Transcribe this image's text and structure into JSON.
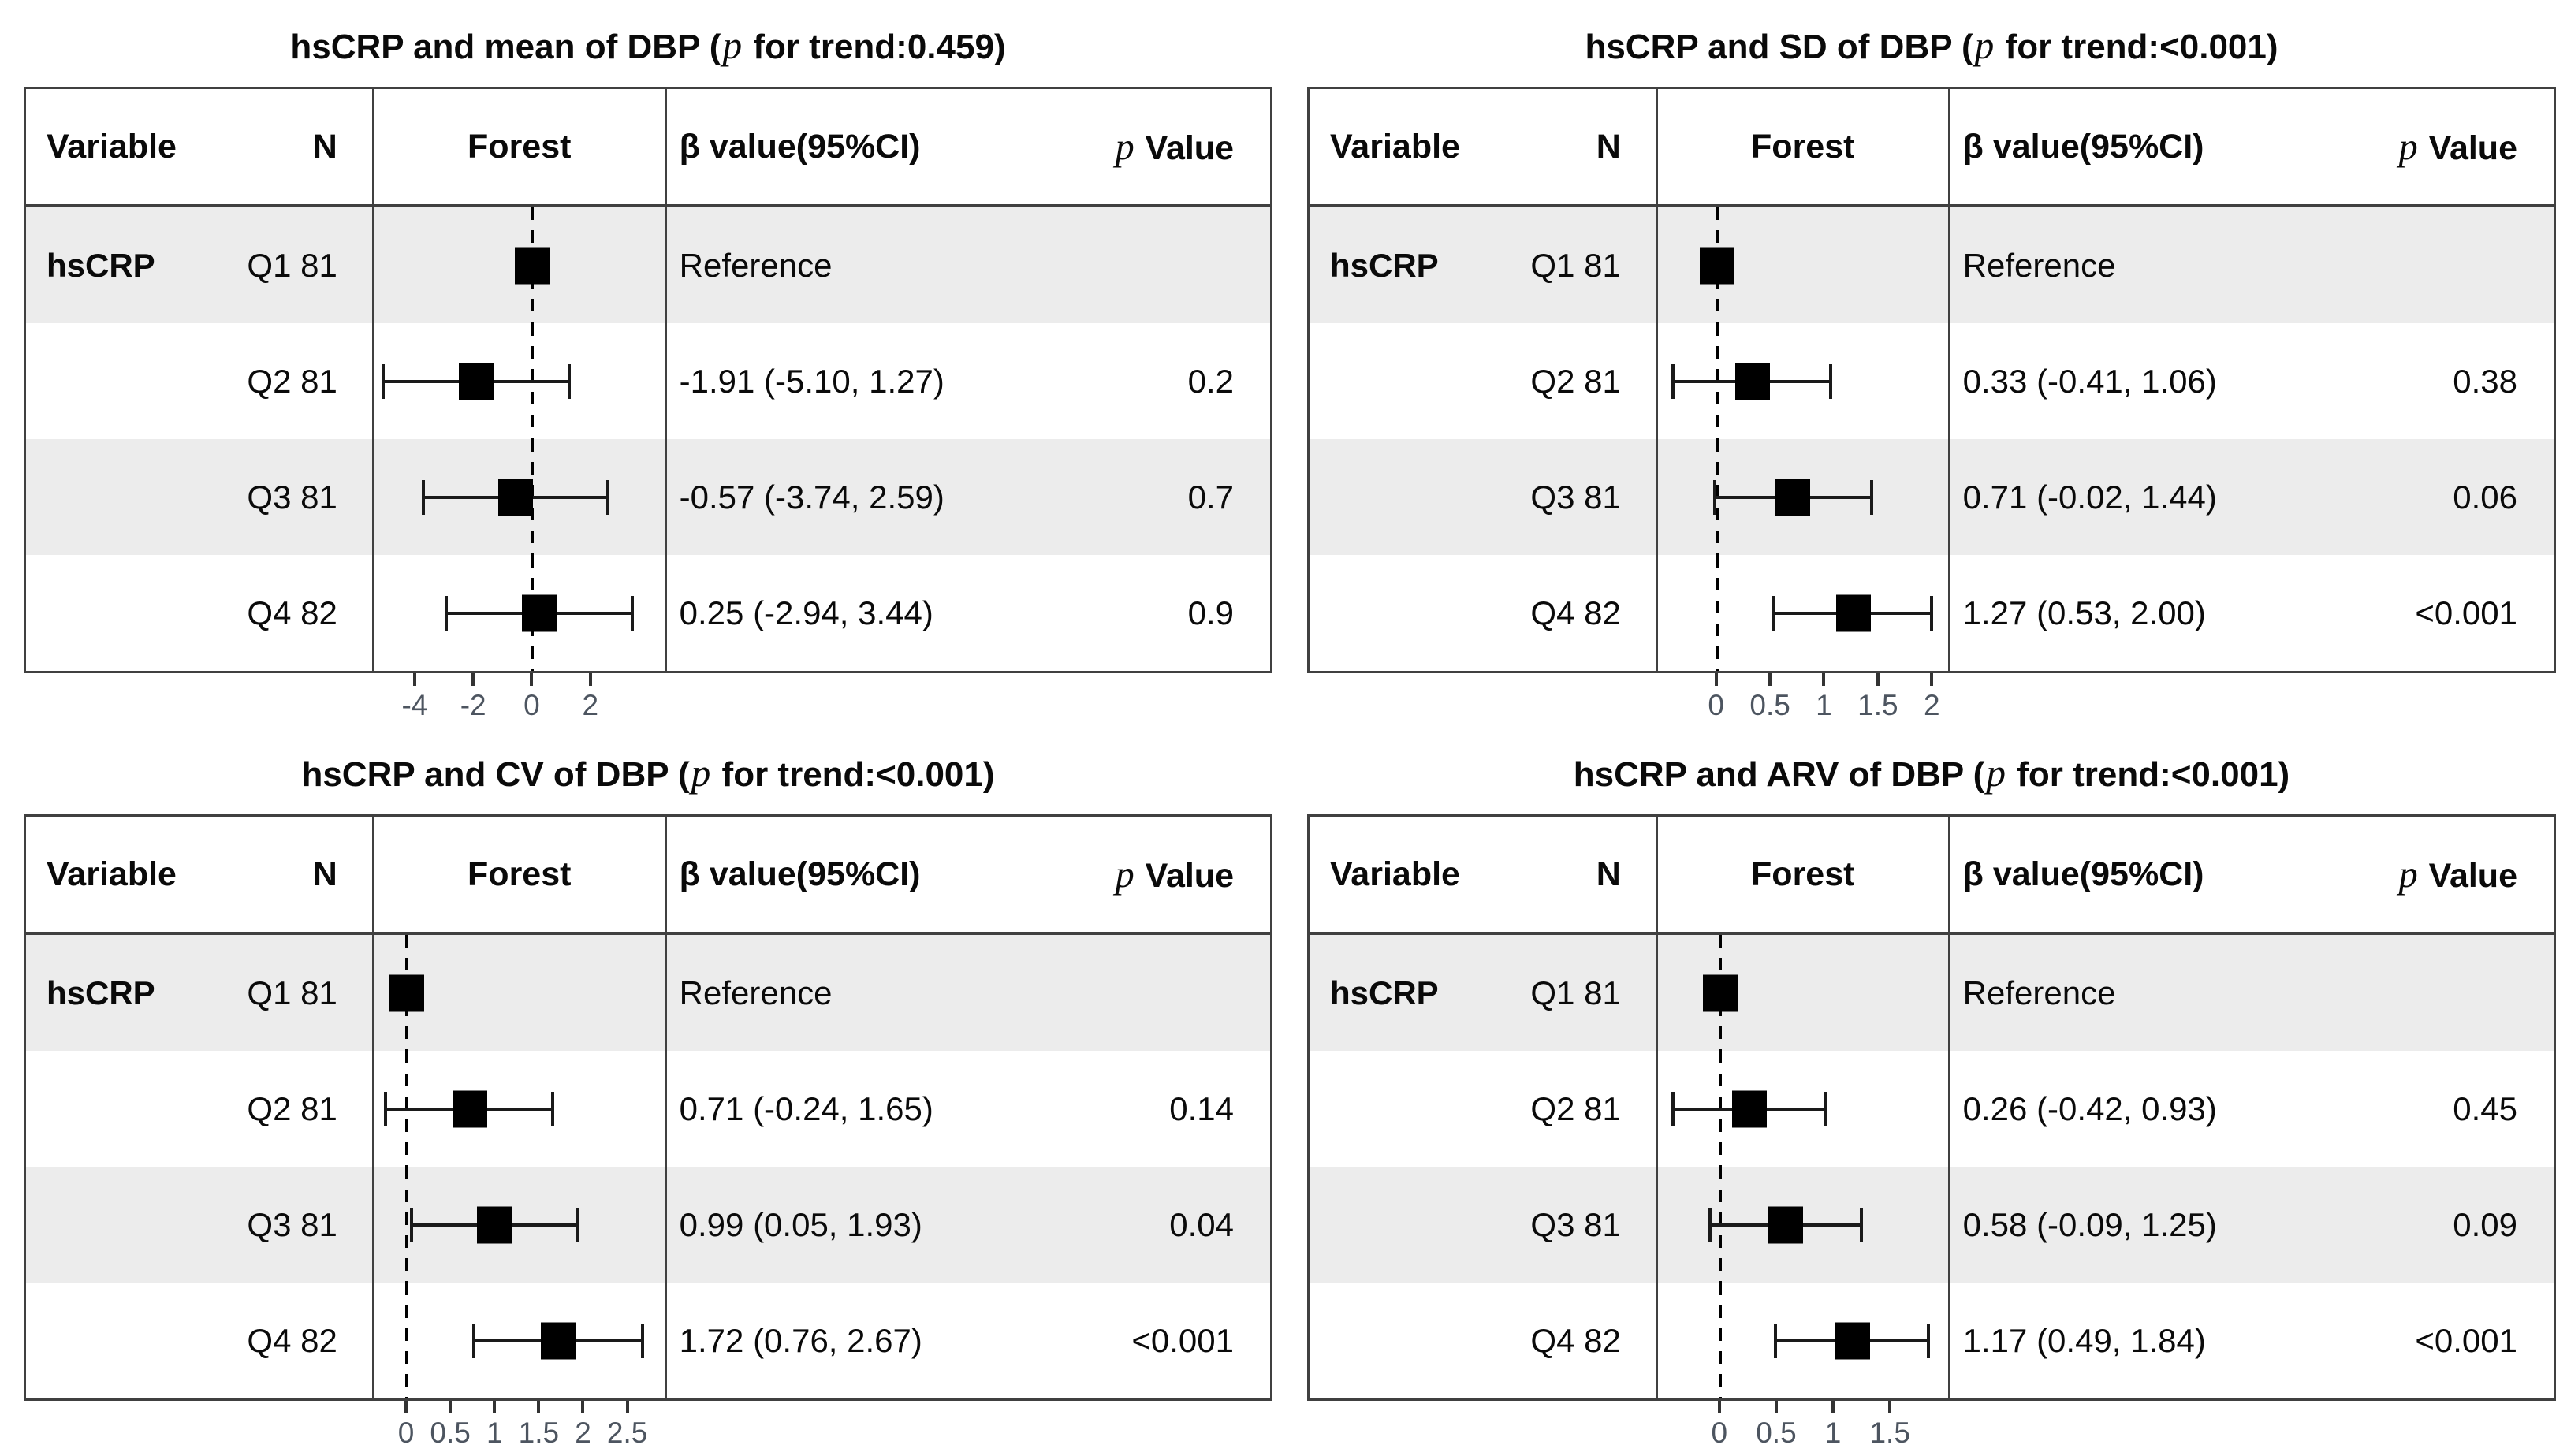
{
  "columns": {
    "variable": "Variable",
    "n": "N",
    "forest": "Forest",
    "beta": "β value(95%CI)",
    "p_italic": "p",
    "p_rest": " Value"
  },
  "colors": {
    "stripe": "#ececec",
    "border": "#404040",
    "marker": "#000000",
    "axis_text": "#4d5560"
  },
  "chart_data": [
    {
      "type": "forest",
      "title_prefix": "hsCRP and mean of DBP (",
      "title_p": "p",
      "title_suffix": " for trend:0.459)",
      "variable": "hsCRP",
      "outcome": "mean of DBP",
      "p_for_trend": "0.459",
      "xlim": [
        -5.41,
        4.53
      ],
      "ticks": [
        -4,
        -2,
        0,
        2
      ],
      "tick_labels": [
        "-4",
        "-2",
        "0",
        "2"
      ],
      "rows": [
        {
          "label": "Q1 81",
          "quartile": "Q1",
          "n": 81,
          "beta_text": "Reference",
          "p_text": "",
          "est": 0,
          "lo": null,
          "hi": null
        },
        {
          "label": "Q2 81",
          "quartile": "Q2",
          "n": 81,
          "beta_text": "-1.91 (-5.10, 1.27)",
          "p_text": "0.2",
          "est": -1.91,
          "lo": -5.1,
          "hi": 1.27
        },
        {
          "label": "Q3 81",
          "quartile": "Q3",
          "n": 81,
          "beta_text": "-0.57 (-3.74, 2.59)",
          "p_text": "0.7",
          "est": -0.57,
          "lo": -3.74,
          "hi": 2.59
        },
        {
          "label": "Q4 82",
          "quartile": "Q4",
          "n": 82,
          "beta_text": "0.25 (-2.94, 3.44)",
          "p_text": "0.9",
          "est": 0.25,
          "lo": -2.94,
          "hi": 3.44
        }
      ]
    },
    {
      "type": "forest",
      "title_prefix": "hsCRP and SD of DBP (",
      "title_p": "p",
      "title_suffix": " for trend:<0.001)",
      "variable": "hsCRP",
      "outcome": "SD of DBP",
      "p_for_trend": "<0.001",
      "xlim": [
        -0.55,
        2.15
      ],
      "ticks": [
        0,
        0.5,
        1,
        1.5,
        2
      ],
      "tick_labels": [
        "0",
        "0.5",
        "1",
        "1.5",
        "2"
      ],
      "rows": [
        {
          "label": "Q1 81",
          "quartile": "Q1",
          "n": 81,
          "beta_text": "Reference",
          "p_text": "",
          "est": 0,
          "lo": null,
          "hi": null
        },
        {
          "label": "Q2 81",
          "quartile": "Q2",
          "n": 81,
          "beta_text": "0.33 (-0.41, 1.06)",
          "p_text": "0.38",
          "est": 0.33,
          "lo": -0.41,
          "hi": 1.06
        },
        {
          "label": "Q3 81",
          "quartile": "Q3",
          "n": 81,
          "beta_text": "0.71 (-0.02, 1.44)",
          "p_text": "0.06",
          "est": 0.71,
          "lo": -0.02,
          "hi": 1.44
        },
        {
          "label": "Q4 82",
          "quartile": "Q4",
          "n": 82,
          "beta_text": "1.27 (0.53, 2.00)",
          "p_text": "<0.001",
          "est": 1.27,
          "lo": 0.53,
          "hi": 2.0
        }
      ]
    },
    {
      "type": "forest",
      "title_prefix": "hsCRP and CV of DBP (",
      "title_p": "p",
      "title_suffix": " for trend:<0.001)",
      "variable": "hsCRP",
      "outcome": "CV of DBP",
      "p_for_trend": "<0.001",
      "xlim": [
        -0.37,
        2.92
      ],
      "ticks": [
        0,
        0.5,
        1,
        1.5,
        2,
        2.5
      ],
      "tick_labels": [
        "0",
        "0.5",
        "1",
        "1.5",
        "2",
        "2.5"
      ],
      "rows": [
        {
          "label": "Q1 81",
          "quartile": "Q1",
          "n": 81,
          "beta_text": "Reference",
          "p_text": "",
          "est": 0,
          "lo": null,
          "hi": null
        },
        {
          "label": "Q2 81",
          "quartile": "Q2",
          "n": 81,
          "beta_text": "0.71 (-0.24, 1.65)",
          "p_text": "0.14",
          "est": 0.71,
          "lo": -0.24,
          "hi": 1.65
        },
        {
          "label": "Q3 81",
          "quartile": "Q3",
          "n": 81,
          "beta_text": "0.99 (0.05, 1.93)",
          "p_text": "0.04",
          "est": 0.99,
          "lo": 0.05,
          "hi": 1.93
        },
        {
          "label": "Q4 82",
          "quartile": "Q4",
          "n": 82,
          "beta_text": "1.72 (0.76, 2.67)",
          "p_text": "<0.001",
          "est": 1.72,
          "lo": 0.76,
          "hi": 2.67
        }
      ]
    },
    {
      "type": "forest",
      "title_prefix": "hsCRP and ARV of DBP (",
      "title_p": "p",
      "title_suffix": " for trend:<0.001)",
      "variable": "hsCRP",
      "outcome": "ARV of DBP",
      "p_for_trend": "<0.001",
      "xlim": [
        -0.55,
        2.01
      ],
      "ticks": [
        0,
        0.5,
        1,
        1.5
      ],
      "tick_labels": [
        "0",
        "0.5",
        "1",
        "1.5"
      ],
      "rows": [
        {
          "label": "Q1 81",
          "quartile": "Q1",
          "n": 81,
          "beta_text": "Reference",
          "p_text": "",
          "est": 0,
          "lo": null,
          "hi": null
        },
        {
          "label": "Q2 81",
          "quartile": "Q2",
          "n": 81,
          "beta_text": "0.26 (-0.42, 0.93)",
          "p_text": "0.45",
          "est": 0.26,
          "lo": -0.42,
          "hi": 0.93
        },
        {
          "label": "Q3 81",
          "quartile": "Q3",
          "n": 81,
          "beta_text": "0.58 (-0.09, 1.25)",
          "p_text": "0.09",
          "est": 0.58,
          "lo": -0.09,
          "hi": 1.25
        },
        {
          "label": "Q4 82",
          "quartile": "Q4",
          "n": 82,
          "beta_text": "1.17 (0.49, 1.84)",
          "p_text": "<0.001",
          "est": 1.17,
          "lo": 0.49,
          "hi": 1.84
        }
      ]
    }
  ]
}
